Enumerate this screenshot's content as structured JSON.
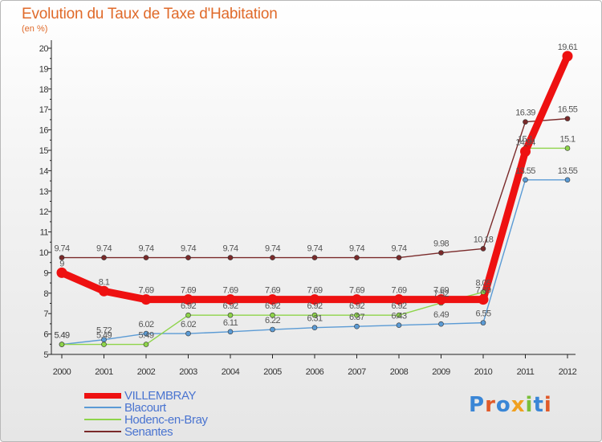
{
  "header": {
    "title": "Evolution du Taux de Taxe d'Habitation",
    "unit": "(en %)"
  },
  "logo": {
    "text": "Proxiti",
    "colors": [
      "#3a86d6",
      "#e05a2a",
      "#3a86d6",
      "#f0a020",
      "#7abf3a",
      "#3a86d6",
      "#e05a2a"
    ]
  },
  "chart_data": {
    "type": "line",
    "title": "Evolution du Taux de Taxe d'Habitation",
    "ylabel": "(en %)",
    "xlabel": "",
    "x": [
      "2000",
      "2001",
      "2002",
      "2003",
      "2004",
      "2005",
      "2006",
      "2007",
      "2008",
      "2009",
      "2010",
      "2011",
      "2012"
    ],
    "ylim": [
      5,
      20
    ],
    "yticks": [
      5,
      6,
      7,
      8,
      9,
      10,
      11,
      12,
      13,
      14,
      15,
      16,
      17,
      18,
      19,
      20
    ],
    "grid": false,
    "legend": "bottom-left",
    "series": [
      {
        "name": "VILLEMBRAY",
        "color": "#ee1111",
        "values": [
          9,
          8.1,
          7.69,
          7.69,
          7.69,
          7.69,
          7.69,
          7.69,
          7.69,
          7.69,
          7.69,
          14.94,
          19.61
        ],
        "labels": [
          "9",
          "8.1",
          "7.69",
          "7.69",
          "7.69",
          "7.69",
          "7.69",
          "7.69",
          "7.69",
          "7.69",
          "7.69",
          "14.94",
          "19.61"
        ]
      },
      {
        "name": "Blacourt",
        "color": "#5b9bd5",
        "values": [
          5.49,
          5.72,
          6.02,
          6.02,
          6.11,
          6.22,
          6.31,
          6.37,
          6.43,
          6.49,
          6.55,
          13.55,
          13.55
        ],
        "labels": [
          "5.49",
          "5.72",
          "6.02",
          "6.02",
          "6.11",
          "6.22",
          "6.31",
          "6.37",
          "6.43",
          "6.49",
          "6.55",
          "13.55",
          "13.55"
        ]
      },
      {
        "name": "Hodenc-en-Bray",
        "color": "#8ed44a",
        "values": [
          5.49,
          5.49,
          5.49,
          6.92,
          6.92,
          6.92,
          6.92,
          6.92,
          6.92,
          7.52,
          8.05,
          15.1,
          15.1
        ],
        "labels": [
          "5.49",
          "5.49",
          "5.49",
          "6.92",
          "6.92",
          "6.92",
          "6.92",
          "6.92",
          "6.92",
          "7.52",
          "8.05",
          "15.1",
          "15.1"
        ]
      },
      {
        "name": "Senantes",
        "color": "#7a2a2a",
        "values": [
          9.74,
          9.74,
          9.74,
          9.74,
          9.74,
          9.74,
          9.74,
          9.74,
          9.74,
          9.98,
          10.18,
          16.39,
          16.55
        ],
        "labels": [
          "9.74",
          "9.74",
          "9.74",
          "9.74",
          "9.74",
          "9.74",
          "9.74",
          "9.74",
          "9.74",
          "9.98",
          "10.18",
          "16.39",
          "16.55"
        ]
      }
    ]
  }
}
